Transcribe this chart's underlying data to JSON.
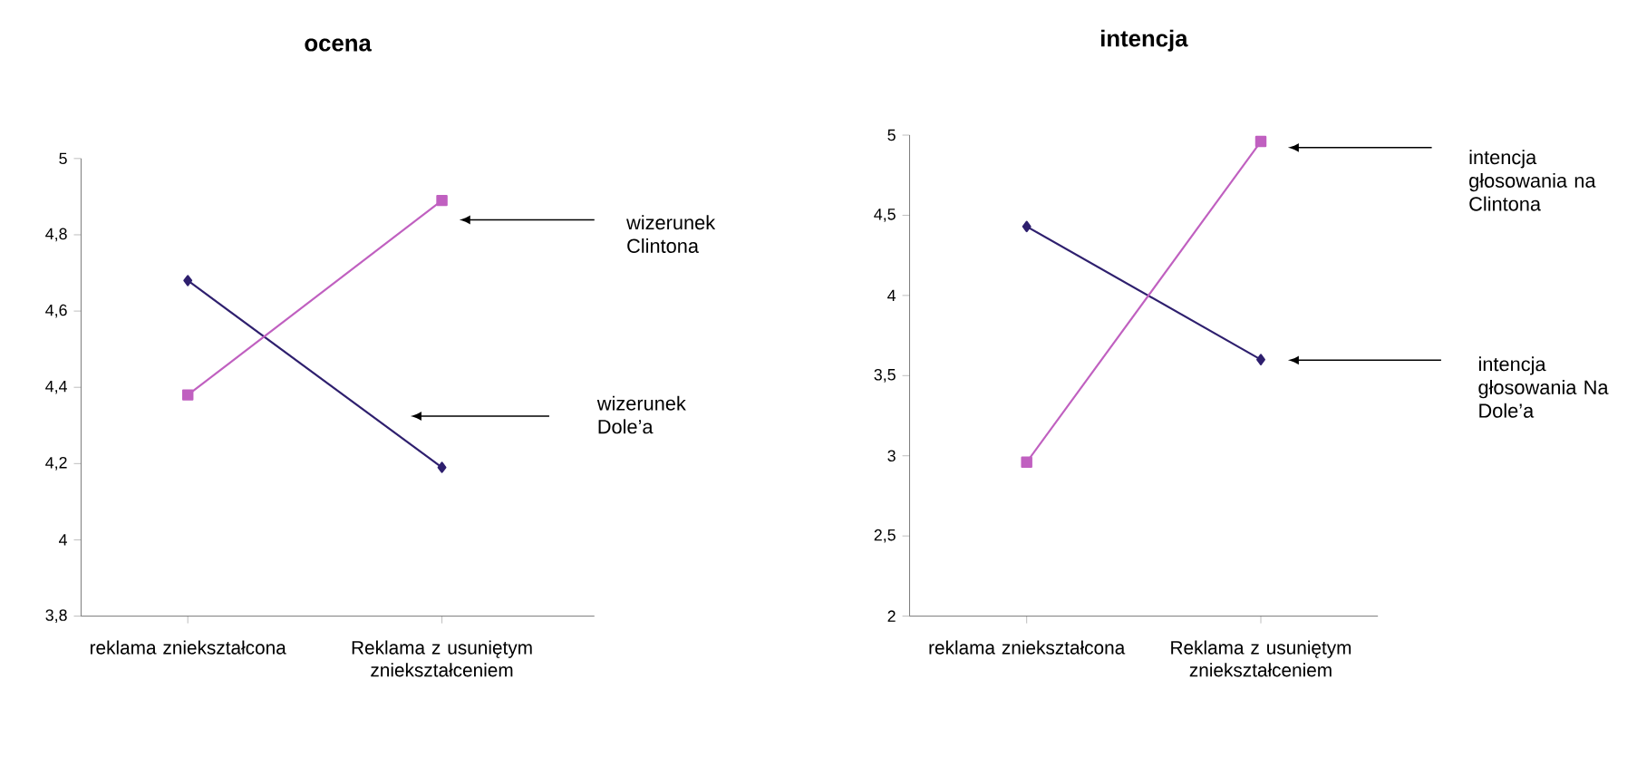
{
  "chart_data": [
    {
      "type": "line",
      "title": "ocena",
      "categories": [
        "reklama zniekształcona",
        "Reklama z usuniętym zniekształceniem"
      ],
      "series": [
        {
          "name": "wizerunek Dole’a",
          "color": "#2e1f6e",
          "marker": "diamond",
          "values": [
            4.68,
            4.19
          ]
        },
        {
          "name": "wizerunek Clintona",
          "color": "#c060c0",
          "marker": "square",
          "values": [
            4.38,
            4.89
          ]
        }
      ],
      "ylim": [
        3.8,
        5
      ],
      "yticks": [
        {
          "value": 3.8,
          "label": "3,8"
        },
        4,
        {
          "value": 4.2,
          "label": "4,2"
        },
        {
          "value": 4.4,
          "label": "4,4"
        },
        {
          "value": 4.6,
          "label": "4,6"
        },
        {
          "value": 4.8,
          "label": "4,8"
        },
        5
      ],
      "grid": false,
      "legend": false,
      "line_style": "solid"
    },
    {
      "type": "line",
      "title": "intencja",
      "categories": [
        "reklama zniekształcona",
        "Reklama z usuniętym zniekształceniem"
      ],
      "series": [
        {
          "name": "intencja głosowania Na Dole’a",
          "color": "#2e1f6e",
          "marker": "diamond",
          "values": [
            4.43,
            3.6
          ]
        },
        {
          "name": "intencja głosowania na Clintona",
          "color": "#c060c0",
          "marker": "square",
          "values": [
            2.96,
            4.96
          ]
        }
      ],
      "ylim": [
        2,
        5
      ],
      "yticks": [
        2,
        {
          "value": 2.5,
          "label": "2,5"
        },
        3,
        {
          "value": 3.5,
          "label": "3,5"
        },
        4,
        {
          "value": 4.5,
          "label": "4,5"
        },
        5
      ],
      "grid": false,
      "legend": false,
      "line_style": "solid"
    }
  ]
}
